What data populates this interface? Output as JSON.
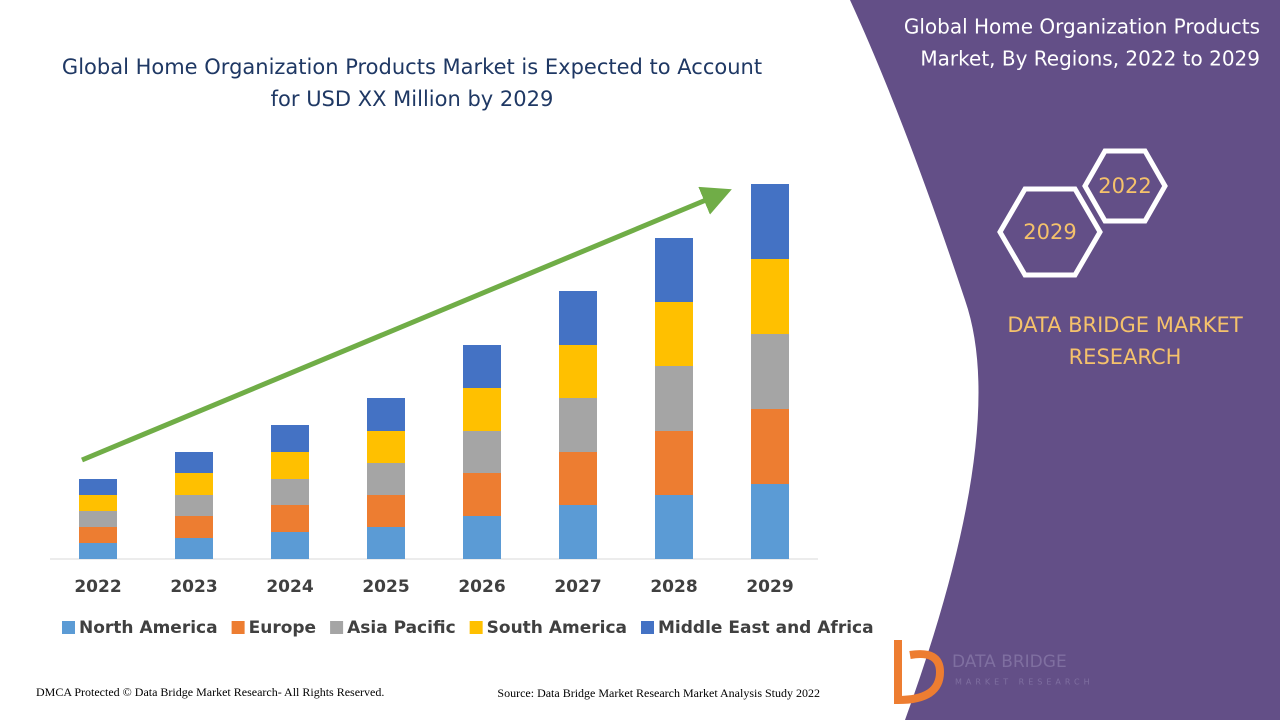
{
  "chart_data": {
    "type": "bar",
    "stacked": true,
    "title": "Global Home Organization Products Market is Expected to Account for USD XX Million by 2029",
    "categories": [
      "2022",
      "2023",
      "2024",
      "2025",
      "2026",
      "2027",
      "2028",
      "2029"
    ],
    "series": [
      {
        "name": "North America",
        "color": "#5b9bd5",
        "values": [
          16,
          21,
          27,
          32,
          43,
          54,
          64,
          75
        ]
      },
      {
        "name": "Europe",
        "color": "#ed7d31",
        "values": [
          16,
          22,
          27,
          32,
          43,
          53,
          64,
          75
        ]
      },
      {
        "name": "Asia Pacific",
        "color": "#a5a5a5",
        "values": [
          16,
          21,
          26,
          32,
          42,
          54,
          65,
          75
        ]
      },
      {
        "name": "South America",
        "color": "#ffc000",
        "values": [
          16,
          22,
          27,
          32,
          43,
          53,
          64,
          75
        ]
      },
      {
        "name": "Middle East and Africa",
        "color": "#4472c4",
        "values": [
          16,
          21,
          27,
          33,
          43,
          54,
          64,
          75
        ]
      }
    ],
    "legend": "bottom"
  },
  "panel": {
    "title": "Global Home Organization Products Market, By Regions, 2022 to 2029",
    "hex_top": "2022",
    "hex_bottom": "2029",
    "brand": "DATA BRIDGE MARKET RESEARCH"
  },
  "logo": {
    "name": "DATA BRIDGE",
    "tagline": "MARKET RESEARCH"
  },
  "footer": {
    "left": "DMCA Protected © Data Bridge Market Research- All Rights Reserved.",
    "right": "Source: Data Bridge Market Research Market Analysis Study 2022"
  }
}
